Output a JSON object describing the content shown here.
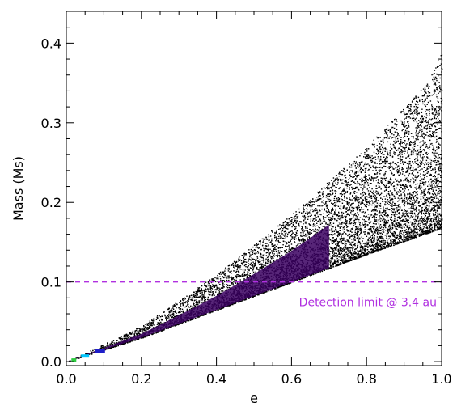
{
  "chart_data": {
    "type": "scatter",
    "title": "",
    "xlabel": "e",
    "ylabel": "Mass (Ms)",
    "xlim": [
      0.0,
      1.0
    ],
    "ylim": [
      -0.005,
      0.44
    ],
    "x_ticks": [
      "0.0",
      "0.2",
      "0.4",
      "0.6",
      "0.8",
      "1.0"
    ],
    "y_ticks": [
      "0.0",
      "0.1",
      "0.2",
      "0.3",
      "0.4"
    ],
    "grid": false,
    "density_region": {
      "lower_edge": [
        [
          0.0,
          0.0
        ],
        [
          0.2,
          0.03
        ],
        [
          0.4,
          0.065
        ],
        [
          0.6,
          0.1
        ],
        [
          0.8,
          0.135
        ],
        [
          1.0,
          0.168
        ]
      ],
      "upper_edge": [
        [
          0.0,
          0.0
        ],
        [
          0.2,
          0.045
        ],
        [
          0.4,
          0.11
        ],
        [
          0.6,
          0.185
        ],
        [
          0.8,
          0.27
        ],
        [
          0.96,
          0.35
        ],
        [
          1.0,
          0.39
        ]
      ],
      "point_color": "#000000",
      "dense_colors": [
        "#3a0060",
        "#1e1ec8",
        "#00c8ff",
        "#2ecc40"
      ]
    },
    "hline": {
      "y": 0.1,
      "color": "#b030e0",
      "style": "dashed",
      "label": "Detection limit @ 3.4 au"
    }
  }
}
